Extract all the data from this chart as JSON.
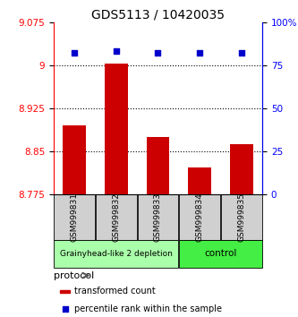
{
  "title": "GDS5113 / 10420035",
  "samples": [
    "GSM999831",
    "GSM999832",
    "GSM999833",
    "GSM999834",
    "GSM999835"
  ],
  "bar_values": [
    8.895,
    9.003,
    8.875,
    8.822,
    8.862
  ],
  "scatter_values": [
    82,
    83,
    82,
    82,
    82
  ],
  "ylim_left": [
    8.775,
    9.075
  ],
  "ylim_right": [
    0,
    100
  ],
  "yticks_left": [
    8.775,
    8.85,
    8.925,
    9.0,
    9.075
  ],
  "yticks_right": [
    0,
    25,
    50,
    75,
    100
  ],
  "ytick_labels_left": [
    "8.775",
    "8.85",
    "8.925",
    "9",
    "9.075"
  ],
  "ytick_labels_right": [
    "0",
    "25",
    "50",
    "75",
    "100%"
  ],
  "bar_color": "#cc0000",
  "scatter_color": "#0000cc",
  "bar_bottom": 8.775,
  "groups": [
    {
      "label": "Grainyhead-like 2 depletion",
      "n_samples": 3,
      "color": "#aaffaa"
    },
    {
      "label": "control",
      "n_samples": 2,
      "color": "#44ee44"
    }
  ],
  "protocol_label": "protocol",
  "legend_bar_label": "transformed count",
  "legend_scatter_label": "percentile rank within the sample",
  "title_fontsize": 10,
  "tick_fontsize": 7.5,
  "sample_fontsize": 6.5,
  "group_fontsize": 7.5
}
